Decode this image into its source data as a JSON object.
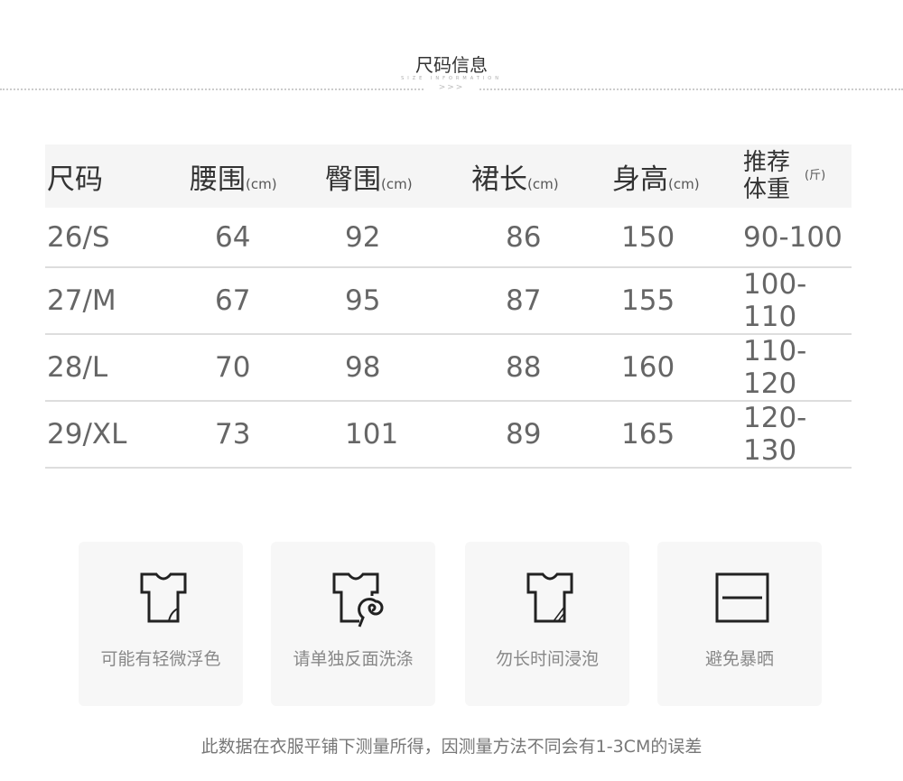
{
  "header": {
    "title": "尺码信息",
    "subtitle": "SIZE INFORMATION",
    "arrows": ">>>"
  },
  "table": {
    "columns": [
      {
        "label": "尺码",
        "unit": ""
      },
      {
        "label": "腰围",
        "unit": "(cm)"
      },
      {
        "label": "臀围",
        "unit": "(cm)"
      },
      {
        "label": "裙长",
        "unit": "(cm)"
      },
      {
        "label": "身高",
        "unit": "(cm)"
      },
      {
        "label": "推荐体重",
        "unit": "(斤)"
      }
    ],
    "rows": [
      [
        "26/S",
        "64",
        "92",
        "86",
        "150",
        "90-100"
      ],
      [
        "27/M",
        "67",
        "95",
        "87",
        "155",
        "100-110"
      ],
      [
        "28/L",
        "70",
        "98",
        "88",
        "160",
        "110-120"
      ],
      [
        "29/XL",
        "73",
        "101",
        "89",
        "165",
        "120-130"
      ]
    ]
  },
  "care": [
    {
      "icon": "tshirt-fade-icon",
      "label": "可能有轻微浮色"
    },
    {
      "icon": "tshirt-wash-icon",
      "label": "请单独反面洗涤"
    },
    {
      "icon": "tshirt-soak-icon",
      "label": "勿长时间浸泡"
    },
    {
      "icon": "no-sun-icon",
      "label": "避免暴晒"
    }
  ],
  "note": "此数据在衣服平铺下测量所得，因测量方法不同会有1-3CM的误差"
}
